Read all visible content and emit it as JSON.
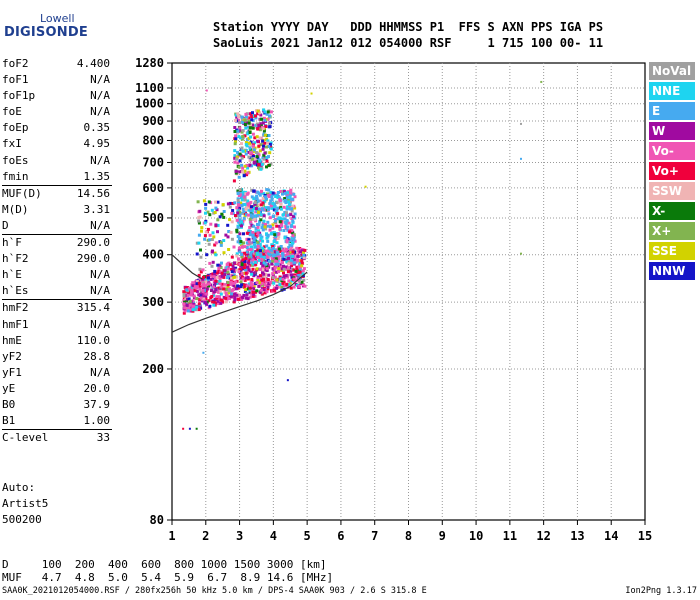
{
  "logo": {
    "top": "Lowell",
    "main": "DIGISONDE"
  },
  "header": {
    "line1": "Station YYYY DAY   DDD HHMMSS P1  FFS S AXN PPS IGA PS",
    "line2": "SaoLuis 2021 Jan12 012 054000 RSF     1 715 100 00- 11"
  },
  "params": [
    {
      "key": "foF2",
      "value": "4.400"
    },
    {
      "key": "foF1",
      "value": "N/A"
    },
    {
      "key": "foF1p",
      "value": "N/A"
    },
    {
      "key": "foE",
      "value": "N/A"
    },
    {
      "key": "foEp",
      "value": "0.35"
    },
    {
      "key": "fxI",
      "value": "4.95"
    },
    {
      "key": "foEs",
      "value": "N/A"
    },
    {
      "key": "fmin",
      "value": "1.35"
    },
    {
      "key": "MUF(D)",
      "value": "14.56",
      "rule": true
    },
    {
      "key": "M(D)",
      "value": "3.31"
    },
    {
      "key": "D",
      "value": "N/A"
    },
    {
      "key": "h`F",
      "value": "290.0",
      "rule": true
    },
    {
      "key": "h`F2",
      "value": "290.0"
    },
    {
      "key": "h`E",
      "value": "N/A"
    },
    {
      "key": "h`Es",
      "value": "N/A"
    },
    {
      "key": "hmF2",
      "value": "315.4",
      "rule": true
    },
    {
      "key": "hmF1",
      "value": "N/A"
    },
    {
      "key": "hmE",
      "value": "110.0"
    },
    {
      "key": "yF2",
      "value": "28.8"
    },
    {
      "key": "yF1",
      "value": "N/A"
    },
    {
      "key": "yE",
      "value": "20.0"
    },
    {
      "key": "B0",
      "value": "37.9"
    },
    {
      "key": "B1",
      "value": "1.00"
    },
    {
      "key": "C-level",
      "value": "33",
      "rule": true
    }
  ],
  "auto": {
    "line1": "Auto:",
    "line2": "Artist5",
    "line3": "500200"
  },
  "muf_table": {
    "d_line": "D     100  200  400  600  800 1000 1500 3000 [km]",
    "muf_line": "MUF   4.7  4.8  5.0  5.4  5.9  6.7  8.9 14.6 [MHz]"
  },
  "footer": "SAA0K_2021012054000.RSF / 280fx256h 50 kHz 5.0 km / DPS-4 SAA0K 903 / 2.6 S 315.8 E",
  "version": "Ion2Png 1.3.17",
  "legend": [
    {
      "label": "NoVal",
      "color": "#a0a0a0"
    },
    {
      "label": "NNE",
      "color": "#1ed4f0"
    },
    {
      "label": "E",
      "color": "#46aaf0"
    },
    {
      "label": "W",
      "color": "#a00aa0"
    },
    {
      "label": "Vo-",
      "color": "#f055b4"
    },
    {
      "label": "Vo+",
      "color": "#f0003c"
    },
    {
      "label": "SSW",
      "color": "#f0b4b4"
    },
    {
      "label": "X-",
      "color": "#0a7a0a"
    },
    {
      "label": "X+",
      "color": "#82b450"
    },
    {
      "label": "SSE",
      "color": "#d2d200"
    },
    {
      "label": "NNW",
      "color": "#1414c8"
    }
  ],
  "chart_data": {
    "type": "scatter",
    "xlim": [
      1,
      15
    ],
    "ylim": [
      80,
      1280
    ],
    "xticks": [
      "1",
      "2",
      "3",
      "4",
      "5",
      "6",
      "7",
      "8",
      "9",
      "10",
      "11",
      "12",
      "13",
      "14",
      "15"
    ],
    "yticks": [
      "80",
      "200",
      "300",
      "400",
      "500",
      "600",
      "700",
      "800",
      "900",
      "1000",
      "1100",
      "1280"
    ],
    "y_scale": "log",
    "grid": true,
    "clusters": [
      {
        "name": "low_F_trace",
        "x": [
          1.3,
          4.9
        ],
        "y": [
          285,
          420
        ],
        "count": 900
      },
      {
        "name": "mid_band",
        "x": [
          2.9,
          4.6
        ],
        "y": [
          380,
          600
        ],
        "count": 650
      },
      {
        "name": "second_hop",
        "x": [
          2.8,
          3.9
        ],
        "y": [
          630,
          950
        ],
        "count": 300
      },
      {
        "name": "left_tail",
        "x": [
          1.7,
          2.9
        ],
        "y": [
          340,
          560
        ],
        "count": 120
      }
    ],
    "scattered_points": [
      {
        "x": 1.3,
        "y": 140
      },
      {
        "x": 1.5,
        "y": 140
      },
      {
        "x": 1.7,
        "y": 140
      },
      {
        "x": 1.9,
        "y": 222
      },
      {
        "x": 2.0,
        "y": 1090
      },
      {
        "x": 4.4,
        "y": 188
      },
      {
        "x": 5.1,
        "y": 1070
      },
      {
        "x": 6.7,
        "y": 608
      },
      {
        "x": 11.3,
        "y": 720
      },
      {
        "x": 11.3,
        "y": 405
      },
      {
        "x": 11.3,
        "y": 890
      },
      {
        "x": 11.9,
        "y": 1148
      }
    ],
    "fitted_curves": [
      {
        "name": "virtual_height_trace",
        "x": [
          1.0,
          1.5,
          2.0,
          2.5,
          3.0,
          3.5,
          4.0,
          4.5,
          5.0
        ],
        "y": [
          250,
          262,
          272,
          282,
          292,
          302,
          314,
          330,
          360
        ]
      },
      {
        "name": "upper_trace",
        "x": [
          1.0,
          1.3,
          1.6,
          1.9
        ],
        "y": [
          400,
          378,
          358,
          345
        ]
      }
    ]
  }
}
